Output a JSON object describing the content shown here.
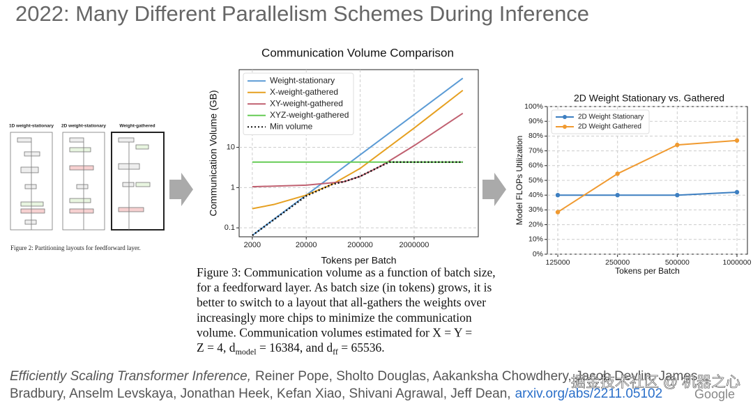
{
  "title": "2022: Many Different Parallelism Schemes During Inference",
  "figure2": {
    "columns": [
      "1D weight-stationary",
      "2D weight-stationary",
      "Weight-gathered"
    ],
    "caption": "Figure 2: Partitioning layouts for feedforward layer."
  },
  "chart_data": [
    {
      "type": "line",
      "title": "Communication Volume Comparison",
      "x_label": "Tokens per Batch",
      "y_label": "Communication Volume (GB)",
      "x_log": true,
      "y_log": true,
      "grid": true,
      "legend": "upper left",
      "xlim": [
        1140,
        31000000
      ],
      "ylim": [
        0.06,
        850
      ],
      "xticks": [
        2000,
        20000,
        200000,
        2000000
      ],
      "yticks": [
        0.1,
        1,
        10
      ],
      "series": [
        {
          "name": "Weight-stationary",
          "color": "#5b9bd5",
          "style": "solid",
          "x": [
            2000,
            20000,
            200000,
            2000000,
            16000000
          ],
          "values": [
            0.065,
            0.65,
            6.5,
            65,
            520
          ]
        },
        {
          "name": "X-weight-gathered",
          "color": "#e6a020",
          "style": "solid",
          "x": [
            2000,
            5000,
            20000,
            60000,
            200000,
            2000000,
            16000000
          ],
          "values": [
            0.3,
            0.38,
            0.65,
            1.2,
            3,
            30,
            260
          ]
        },
        {
          "name": "XY-weight-gathered",
          "color": "#c06070",
          "style": "solid",
          "x": [
            2000,
            20000,
            100000,
            200000,
            500000,
            2000000,
            16000000
          ],
          "values": [
            1.05,
            1.15,
            1.4,
            1.9,
            3.5,
            11,
            70
          ]
        },
        {
          "name": "XYZ-weight-gathered",
          "color": "#66cc55",
          "style": "solid",
          "x": [
            2000,
            16000000
          ],
          "values": [
            4.3,
            4.3
          ]
        },
        {
          "name": "Min volume",
          "color": "#111111",
          "style": "dotted",
          "x": [
            2000,
            20000,
            60000,
            100000,
            200000,
            500000,
            700000,
            16000000
          ],
          "values": [
            0.065,
            0.62,
            1.2,
            1.4,
            1.9,
            3.5,
            4.3,
            4.3
          ]
        }
      ]
    },
    {
      "type": "line",
      "title": "2D Weight Stationary vs. Gathered",
      "x_label": "Tokens per Batch",
      "y_label": "Model FLOPs Utilization",
      "x_log": true,
      "y_log": false,
      "grid": true,
      "legend": "upper left",
      "marker": "o",
      "xlim": [
        110700,
        1129000
      ],
      "ylim": [
        0,
        100
      ],
      "xticks": [
        125000,
        250000,
        500000,
        1000000
      ],
      "yticks": [
        {
          "value": 0,
          "label": "0%"
        },
        {
          "value": 10,
          "label": "10%"
        },
        {
          "value": 20,
          "label": "20%"
        },
        {
          "value": 30,
          "label": "30%"
        },
        {
          "value": 40,
          "label": "40%"
        },
        {
          "value": 50,
          "label": "50%"
        },
        {
          "value": 60,
          "label": "60%"
        },
        {
          "value": 70,
          "label": "70%"
        },
        {
          "value": 80,
          "label": "80%"
        },
        {
          "value": 90,
          "label": "90%"
        },
        {
          "value": 100,
          "label": "100%"
        }
      ],
      "x": [
        125000,
        250000,
        500000,
        1000000
      ],
      "series": [
        {
          "name": "2D Weight Stationary",
          "color": "#3d7fc1",
          "values": [
            40,
            40,
            40,
            42
          ]
        },
        {
          "name": "2D Weight Gathered",
          "color": "#f09a30",
          "values": [
            28.5,
            54.5,
            74,
            77
          ]
        }
      ]
    }
  ],
  "figure3_caption": {
    "lines": [
      "Figure 3: Communication volume as a function of batch size,",
      "for a feedforward layer. As batch size (in tokens) grows, it is",
      "better to switch to a layout that all-gathers the weights over",
      "increasingly more chips to minimize the communication",
      "volume. Communication volumes estimated for X = Y ="
    ],
    "last_line": [
      "Z = 4, d",
      "model",
      " = 16384, and d",
      "ff",
      " = 65536."
    ]
  },
  "footer": {
    "paper": "Efficiently Scaling Transformer Inference,",
    "authors_1": "Reiner Pope, Sholto Douglas, Aakanksha Chowdhery, Jacob Devlin, James",
    "authors_2": "Bradbury, Anselm Levskaya, Jonathan Heek, Kefan Xiao, Shivani Agrawal, Jeff Dean,",
    "link": "arxiv.org/abs/2211.05102",
    "logo": "Google"
  },
  "watermark": "掘金技术社区 @ 机器之心"
}
